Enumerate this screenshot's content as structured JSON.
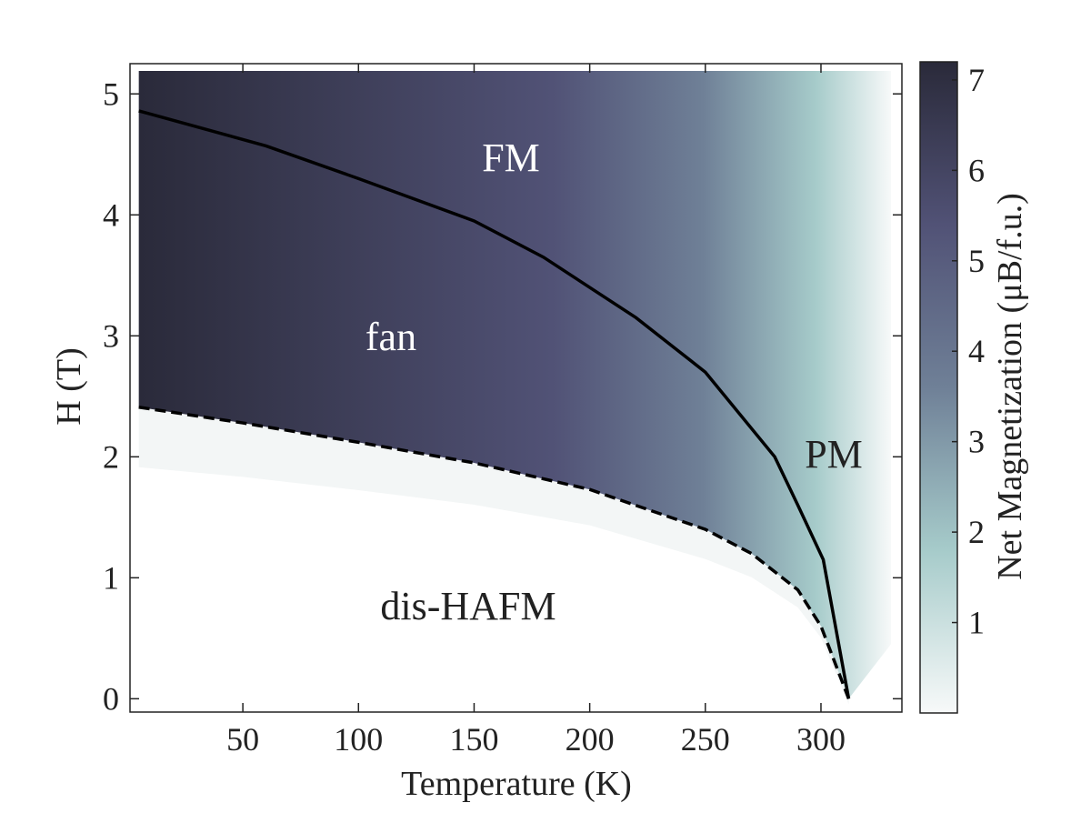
{
  "chart_data": {
    "type": "phase-diagram",
    "xlabel": "Temperature (K)",
    "ylabel": "H (T)",
    "xlim": [
      1.2,
      335
    ],
    "ylim": [
      -0.11,
      5.25
    ],
    "xticks": [
      50,
      100,
      150,
      200,
      250,
      300
    ],
    "yticks": [
      0,
      1,
      2,
      3,
      4,
      5
    ],
    "annotations": [
      "FM",
      "fan",
      "PM",
      "dis-HAFM"
    ],
    "boundaries": [
      {
        "style": "solid",
        "color": "#000000",
        "x": [
          5,
          60,
          100,
          150,
          180,
          220,
          250,
          280,
          290,
          301,
          312
        ],
        "y": [
          4.86,
          4.57,
          4.3,
          3.95,
          3.65,
          3.15,
          2.7,
          2.0,
          1.6,
          1.15,
          0
        ]
      },
      {
        "style": "dashed",
        "color": "#000000",
        "x": [
          5,
          50,
          100,
          150,
          200,
          250,
          270,
          290,
          300,
          312
        ],
        "y": [
          2.41,
          2.28,
          2.12,
          1.95,
          1.73,
          1.4,
          1.2,
          0.9,
          0.6,
          0
        ]
      }
    ],
    "colorbar": {
      "label": "Net Magnetization (μB/f.u.)",
      "lim": [
        0,
        7.2
      ],
      "ticks": [
        1,
        2,
        3,
        4,
        5,
        6,
        7
      ],
      "colormap": [
        "#f7f9f9",
        "#a6cbca",
        "#6f8097",
        "#515276",
        "#2a2a3a"
      ]
    }
  }
}
